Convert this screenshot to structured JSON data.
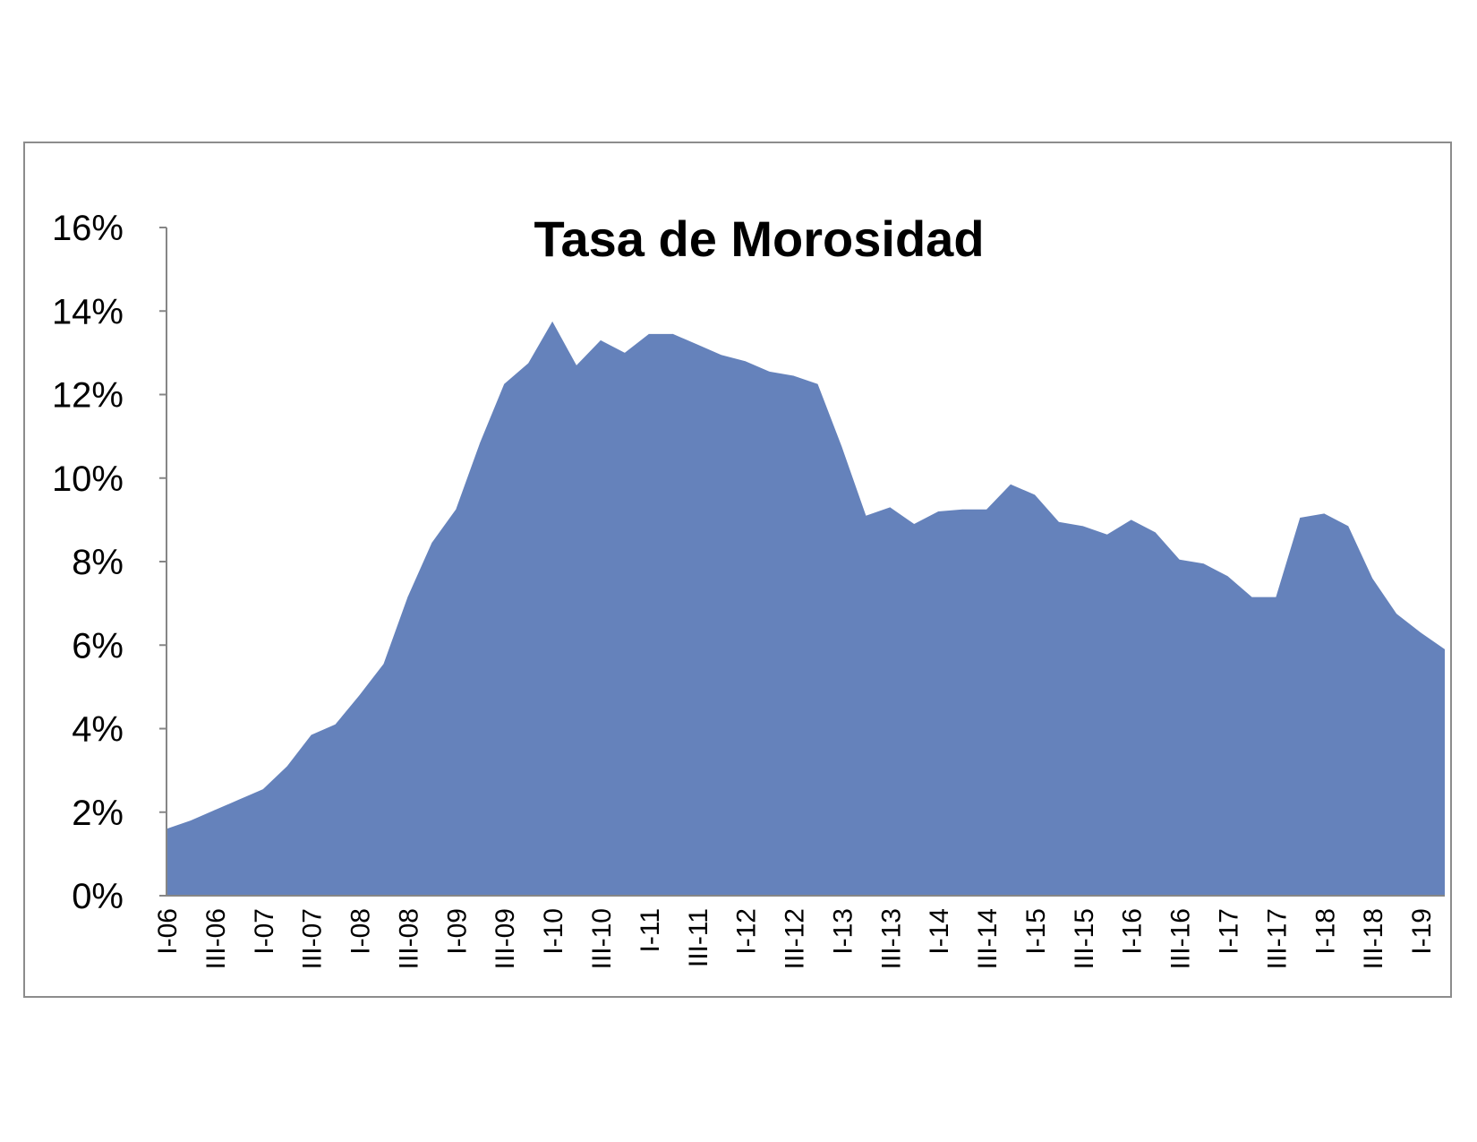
{
  "chart_data": {
    "type": "area",
    "title": "Tasa de Morosidad",
    "xlabel": "",
    "ylabel": "",
    "ylim": [
      0,
      0.16
    ],
    "y_ticks": [
      0,
      0.02,
      0.04,
      0.06,
      0.08,
      0.1,
      0.12,
      0.14,
      0.16
    ],
    "y_tick_labels": [
      "0%",
      "2%",
      "4%",
      "6%",
      "8%",
      "10%",
      "12%",
      "14%",
      "16%"
    ],
    "legend": "none",
    "grid": false,
    "colors": {
      "area": "#6582BB",
      "axis": "#868686",
      "frame": "#8C8C8C"
    },
    "x_tick_labels": [
      "I-06",
      "III-06",
      "I-07",
      "III-07",
      "I-08",
      "III-08",
      "I-09",
      "III-09",
      "I-10",
      "III-10",
      "I-11",
      "III-11",
      "I-12",
      "III-12",
      "I-13",
      "III-13",
      "I-14",
      "III-14",
      "I-15",
      "III-15",
      "I-16",
      "III-16",
      "I-17",
      "III-17",
      "I-18",
      "III-18",
      "I-19"
    ],
    "x": [
      "I-06",
      "II-06",
      "III-06",
      "IV-06",
      "I-07",
      "II-07",
      "III-07",
      "IV-07",
      "I-08",
      "II-08",
      "III-08",
      "IV-08",
      "I-09",
      "II-09",
      "III-09",
      "IV-09",
      "I-10",
      "II-10",
      "III-10",
      "IV-10",
      "I-11",
      "II-11",
      "III-11",
      "IV-11",
      "I-12",
      "II-12",
      "III-12",
      "IV-12",
      "I-13",
      "II-13",
      "III-13",
      "IV-13",
      "I-14",
      "II-14",
      "III-14",
      "IV-14",
      "I-15",
      "II-15",
      "III-15",
      "IV-15",
      "I-16",
      "II-16",
      "III-16",
      "IV-16",
      "I-17",
      "II-17",
      "III-17",
      "IV-17",
      "I-18",
      "II-18",
      "III-18",
      "IV-18",
      "I-19",
      "II-19"
    ],
    "values": [
      0.016,
      0.018,
      0.0205,
      0.023,
      0.0255,
      0.031,
      0.0385,
      0.041,
      0.048,
      0.0555,
      0.0715,
      0.0845,
      0.0925,
      0.1085,
      0.1225,
      0.1275,
      0.1375,
      0.127,
      0.133,
      0.13,
      0.1345,
      0.1345,
      0.132,
      0.1295,
      0.128,
      0.1255,
      0.1245,
      0.1225,
      0.1075,
      0.091,
      0.093,
      0.089,
      0.092,
      0.0925,
      0.0925,
      0.0985,
      0.096,
      0.0895,
      0.0885,
      0.0865,
      0.09,
      0.087,
      0.0805,
      0.0795,
      0.0765,
      0.0715,
      0.0715,
      0.0905,
      0.0915,
      0.0885,
      0.076,
      0.0675,
      0.063,
      0.059
    ]
  }
}
